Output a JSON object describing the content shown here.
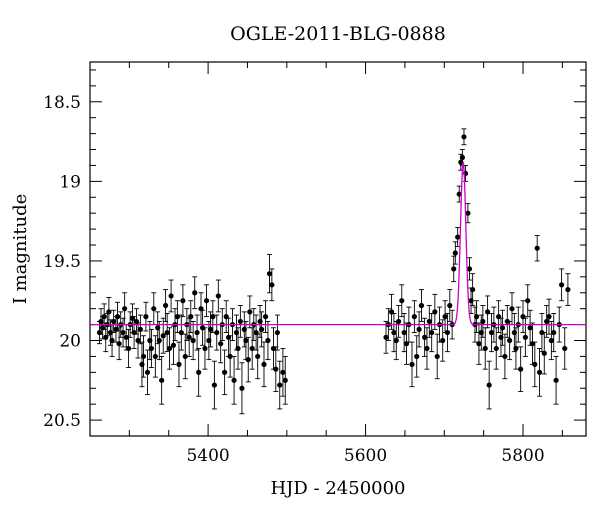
{
  "chart_data": {
    "type": "scatter",
    "title": "OGLE-2011-BLG-0888",
    "xlabel": "HJD - 2450000",
    "ylabel": "I magnitude",
    "xlim": [
      5250,
      5880
    ],
    "ylim": [
      20.6,
      18.25
    ],
    "y_inverted": true,
    "grid": false,
    "x_ticks": [
      {
        "value": 5400,
        "label": "5400"
      },
      {
        "value": 5600,
        "label": "5600"
      },
      {
        "value": 5800,
        "label": "5800"
      }
    ],
    "y_ticks": [
      {
        "value": 18.5,
        "label": "18.5"
      },
      {
        "value": 19,
        "label": "19"
      },
      {
        "value": 19.5,
        "label": "19.5"
      },
      {
        "value": 20,
        "label": "20"
      },
      {
        "value": 20.5,
        "label": "20.5"
      }
    ],
    "marker_color": "#000000",
    "model_color": "#cc00cc",
    "series": [
      {
        "points": [
          [
            5262,
            19.95,
            0.07
          ],
          [
            5264,
            19.88,
            0.08
          ],
          [
            5266,
            19.92,
            0.07
          ],
          [
            5268,
            19.85,
            0.08
          ],
          [
            5270,
            19.98,
            0.09
          ],
          [
            5272,
            19.9,
            0.07
          ],
          [
            5274,
            19.82,
            0.09
          ],
          [
            5276,
            19.95,
            0.08
          ],
          [
            5278,
            20.0,
            0.1
          ],
          [
            5280,
            19.88,
            0.07
          ],
          [
            5283,
            19.93,
            0.08
          ],
          [
            5285,
            19.85,
            0.09
          ],
          [
            5287,
            20.02,
            0.1
          ],
          [
            5289,
            19.9,
            0.08
          ],
          [
            5292,
            19.95,
            0.09
          ],
          [
            5294,
            19.8,
            0.1
          ],
          [
            5296,
            19.98,
            0.08
          ],
          [
            5299,
            20.05,
            0.12
          ],
          [
            5301,
            19.9,
            0.08
          ],
          [
            5304,
            19.86,
            0.09
          ],
          [
            5306,
            19.95,
            0.1
          ],
          [
            5309,
            19.88,
            0.08
          ],
          [
            5311,
            20.0,
            0.11
          ],
          [
            5314,
            19.93,
            0.09
          ],
          [
            5316,
            20.15,
            0.14
          ],
          [
            5318,
            20.1,
            0.13
          ],
          [
            5321,
            19.85,
            0.09
          ],
          [
            5323,
            20.2,
            0.14
          ],
          [
            5326,
            20.0,
            0.12
          ],
          [
            5328,
            20.05,
            0.12
          ],
          [
            5331,
            19.8,
            0.1
          ],
          [
            5333,
            20.1,
            0.13
          ],
          [
            5336,
            19.92,
            0.1
          ],
          [
            5338,
            20.0,
            0.12
          ],
          [
            5341,
            20.25,
            0.15
          ],
          [
            5343,
            19.97,
            0.11
          ],
          [
            5346,
            19.78,
            0.1
          ],
          [
            5348,
            19.95,
            0.12
          ],
          [
            5351,
            20.05,
            0.13
          ],
          [
            5353,
            19.72,
            0.1
          ],
          [
            5356,
            20.03,
            0.12
          ],
          [
            5358,
            19.9,
            0.1
          ],
          [
            5361,
            19.85,
            0.1
          ],
          [
            5363,
            20.15,
            0.14
          ],
          [
            5366,
            19.95,
            0.11
          ],
          [
            5368,
            19.75,
            0.1
          ],
          [
            5371,
            20.1,
            0.14
          ],
          [
            5373,
            19.9,
            0.1
          ],
          [
            5376,
            19.98,
            0.12
          ],
          [
            5378,
            19.85,
            0.1
          ],
          [
            5381,
            20.0,
            0.12
          ],
          [
            5383,
            19.7,
            0.1
          ],
          [
            5386,
            19.95,
            0.11
          ],
          [
            5388,
            20.2,
            0.15
          ],
          [
            5391,
            19.8,
            0.1
          ],
          [
            5393,
            19.92,
            0.11
          ],
          [
            5396,
            20.05,
            0.13
          ],
          [
            5398,
            19.75,
            0.1
          ],
          [
            5401,
            20.0,
            0.12
          ],
          [
            5403,
            19.93,
            0.11
          ],
          [
            5406,
            19.85,
            0.1
          ],
          [
            5408,
            20.28,
            0.15
          ],
          [
            5411,
            19.95,
            0.11
          ],
          [
            5413,
            19.72,
            0.1
          ],
          [
            5416,
            20.02,
            0.12
          ],
          [
            5418,
            19.9,
            0.1
          ],
          [
            5421,
            20.2,
            0.14
          ],
          [
            5423,
            19.85,
            0.1
          ],
          [
            5426,
            19.98,
            0.12
          ],
          [
            5428,
            20.1,
            0.13
          ],
          [
            5431,
            19.9,
            0.1
          ],
          [
            5433,
            20.25,
            0.15
          ],
          [
            5436,
            19.95,
            0.11
          ],
          [
            5438,
            20.05,
            0.13
          ],
          [
            5441,
            19.88,
            0.1
          ],
          [
            5443,
            20.3,
            0.16
          ],
          [
            5446,
            19.93,
            0.11
          ],
          [
            5448,
            20.0,
            0.12
          ],
          [
            5451,
            20.12,
            0.14
          ],
          [
            5453,
            19.82,
            0.1
          ],
          [
            5456,
            20.05,
            0.13
          ],
          [
            5458,
            19.9,
            0.1
          ],
          [
            5461,
            19.95,
            0.11
          ],
          [
            5463,
            20.1,
            0.14
          ],
          [
            5466,
            19.88,
            0.1
          ],
          [
            5468,
            19.93,
            0.11
          ],
          [
            5471,
            20.15,
            0.14
          ],
          [
            5473,
            19.85,
            0.1
          ],
          [
            5476,
            20.0,
            0.12
          ],
          [
            5478,
            19.58,
            0.12
          ],
          [
            5481,
            19.65,
            0.1
          ],
          [
            5483,
            20.05,
            0.13
          ],
          [
            5486,
            20.18,
            0.14
          ],
          [
            5488,
            19.95,
            0.11
          ],
          [
            5491,
            20.28,
            0.15
          ],
          [
            5495,
            20.2,
            0.15
          ],
          [
            5498,
            20.25,
            0.15
          ],
          [
            5626,
            19.98,
            0.1
          ],
          [
            5629,
            19.9,
            0.1
          ],
          [
            5633,
            19.82,
            0.11
          ],
          [
            5636,
            19.95,
            0.12
          ],
          [
            5639,
            20.0,
            0.12
          ],
          [
            5642,
            19.88,
            0.1
          ],
          [
            5646,
            19.75,
            0.1
          ],
          [
            5649,
            19.95,
            0.12
          ],
          [
            5652,
            20.02,
            0.13
          ],
          [
            5655,
            19.9,
            0.11
          ],
          [
            5659,
            20.15,
            0.14
          ],
          [
            5662,
            19.85,
            0.1
          ],
          [
            5665,
            20.1,
            0.13
          ],
          [
            5668,
            19.93,
            0.11
          ],
          [
            5671,
            19.78,
            0.1
          ],
          [
            5675,
            19.98,
            0.12
          ],
          [
            5678,
            20.05,
            0.13
          ],
          [
            5681,
            19.88,
            0.1
          ],
          [
            5684,
            19.95,
            0.12
          ],
          [
            5688,
            19.82,
            0.11
          ],
          [
            5691,
            20.1,
            0.14
          ],
          [
            5694,
            19.9,
            0.11
          ],
          [
            5698,
            20.0,
            0.13
          ],
          [
            5701,
            19.85,
            0.1
          ],
          [
            5704,
            19.95,
            0.12
          ],
          [
            5707,
            19.78,
            0.1
          ],
          [
            5710,
            19.9,
            0.09
          ],
          [
            5712,
            19.55,
            0.08
          ],
          [
            5714,
            19.45,
            0.07
          ],
          [
            5717,
            19.35,
            0.06
          ],
          [
            5719,
            19.08,
            0.05
          ],
          [
            5721,
            18.88,
            0.05
          ],
          [
            5723,
            18.85,
            0.05
          ],
          [
            5725,
            18.72,
            0.05
          ],
          [
            5727,
            18.95,
            0.05
          ],
          [
            5730,
            19.2,
            0.06
          ],
          [
            5732,
            19.55,
            0.07
          ],
          [
            5734,
            19.75,
            0.08
          ],
          [
            5736,
            19.68,
            0.1
          ],
          [
            5739,
            19.9,
            0.11
          ],
          [
            5741,
            19.85,
            0.1
          ],
          [
            5744,
            20.02,
            0.13
          ],
          [
            5747,
            19.95,
            0.11
          ],
          [
            5749,
            19.88,
            0.1
          ],
          [
            5752,
            20.05,
            0.13
          ],
          [
            5755,
            19.82,
            0.1
          ],
          [
            5757,
            20.28,
            0.15
          ],
          [
            5760,
            19.95,
            0.12
          ],
          [
            5763,
            19.9,
            0.11
          ],
          [
            5766,
            20.05,
            0.13
          ],
          [
            5769,
            19.85,
            0.1
          ],
          [
            5772,
            19.98,
            0.12
          ],
          [
            5774,
            19.92,
            0.11
          ],
          [
            5777,
            20.1,
            0.14
          ],
          [
            5780,
            19.88,
            0.1
          ],
          [
            5783,
            20.0,
            0.12
          ],
          [
            5786,
            19.8,
            0.1
          ],
          [
            5789,
            19.95,
            0.12
          ],
          [
            5791,
            20.05,
            0.13
          ],
          [
            5794,
            19.9,
            0.11
          ],
          [
            5797,
            20.18,
            0.14
          ],
          [
            5800,
            19.85,
            0.1
          ],
          [
            5803,
            19.98,
            0.12
          ],
          [
            5806,
            19.75,
            0.1
          ],
          [
            5809,
            19.92,
            0.11
          ],
          [
            5812,
            20.02,
            0.13
          ],
          [
            5815,
            20.15,
            0.14
          ],
          [
            5818,
            19.42,
            0.08
          ],
          [
            5821,
            20.2,
            0.15
          ],
          [
            5824,
            19.95,
            0.12
          ],
          [
            5827,
            20.08,
            0.13
          ],
          [
            5830,
            19.88,
            0.1
          ],
          [
            5833,
            19.85,
            0.11
          ],
          [
            5836,
            20.0,
            0.12
          ],
          [
            5839,
            19.95,
            0.12
          ],
          [
            5842,
            20.25,
            0.15
          ],
          [
            5846,
            19.9,
            0.11
          ],
          [
            5849,
            19.65,
            0.1
          ],
          [
            5853,
            20.05,
            0.13
          ],
          [
            5857,
            19.68,
            0.1
          ]
        ]
      }
    ],
    "model": {
      "baseline": 19.9,
      "peak_x": 5724,
      "peak_y": 18.88,
      "fwhm_days": 8
    }
  }
}
